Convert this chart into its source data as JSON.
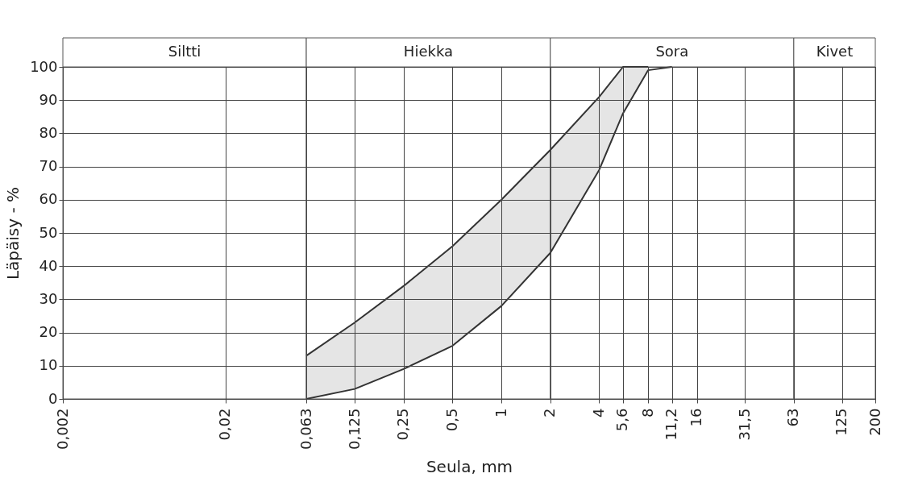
{
  "chart_data": {
    "type": "line",
    "xlabel": "Seula, mm",
    "ylabel": "Läpäisy - %",
    "log": "x",
    "grid": true,
    "series": [
      {
        "color": "#333333",
        "x": [
          0.063,
          0.125,
          0.25,
          0.5,
          1,
          2,
          4,
          5.6,
          8
        ],
        "values": [
          13,
          23,
          34,
          46,
          60,
          75,
          91,
          100,
          100
        ],
        "lower": [
          0,
          3,
          9,
          16,
          28,
          44,
          69,
          86,
          99
        ],
        "upper": [
          13,
          23,
          34,
          46,
          60,
          75,
          91,
          100,
          100
        ]
      },
      {
        "color": "#333333",
        "x": [
          0.063,
          0.125,
          0.25,
          0.5,
          1,
          2,
          4,
          5.6,
          8,
          11.2
        ],
        "values": [
          0,
          3,
          9,
          16,
          28,
          44,
          69,
          86,
          99,
          100
        ]
      }
    ],
    "xlim": [
      0.002,
      200
    ],
    "xticks": [
      {
        "value": 0.002,
        "label": "0,002"
      },
      {
        "value": 0.02,
        "label": "0,02"
      },
      {
        "value": 0.063,
        "label": "0,063"
      },
      {
        "value": 0.125,
        "label": "0,125"
      },
      {
        "value": 0.25,
        "label": "0,25"
      },
      {
        "value": 0.5,
        "label": "0,5"
      },
      1,
      2,
      4,
      {
        "value": 5.6,
        "label": "5,6"
      },
      8,
      {
        "value": 11.2,
        "label": "11,2"
      },
      16,
      {
        "value": 31.5,
        "label": "31,5"
      },
      63,
      125,
      200
    ],
    "ylim": [
      0,
      100
    ],
    "yticks": [
      0,
      10,
      20,
      30,
      40,
      50,
      60,
      70,
      80,
      90,
      100
    ],
    "bands": [
      {
        "axis": "x",
        "from": 0.002,
        "to": 0.063,
        "label": "Siltti",
        "color": "#ffffff"
      },
      {
        "axis": "x",
        "from": 0.063,
        "to": 2,
        "label": "Hiekka",
        "color": "#ffffff"
      },
      {
        "axis": "x",
        "from": 2,
        "to": 63,
        "label": "Sora",
        "color": "#ffffff"
      },
      {
        "axis": "x",
        "from": 63,
        "to": 200,
        "label": "Kivet",
        "color": "#ffffff"
      }
    ]
  }
}
